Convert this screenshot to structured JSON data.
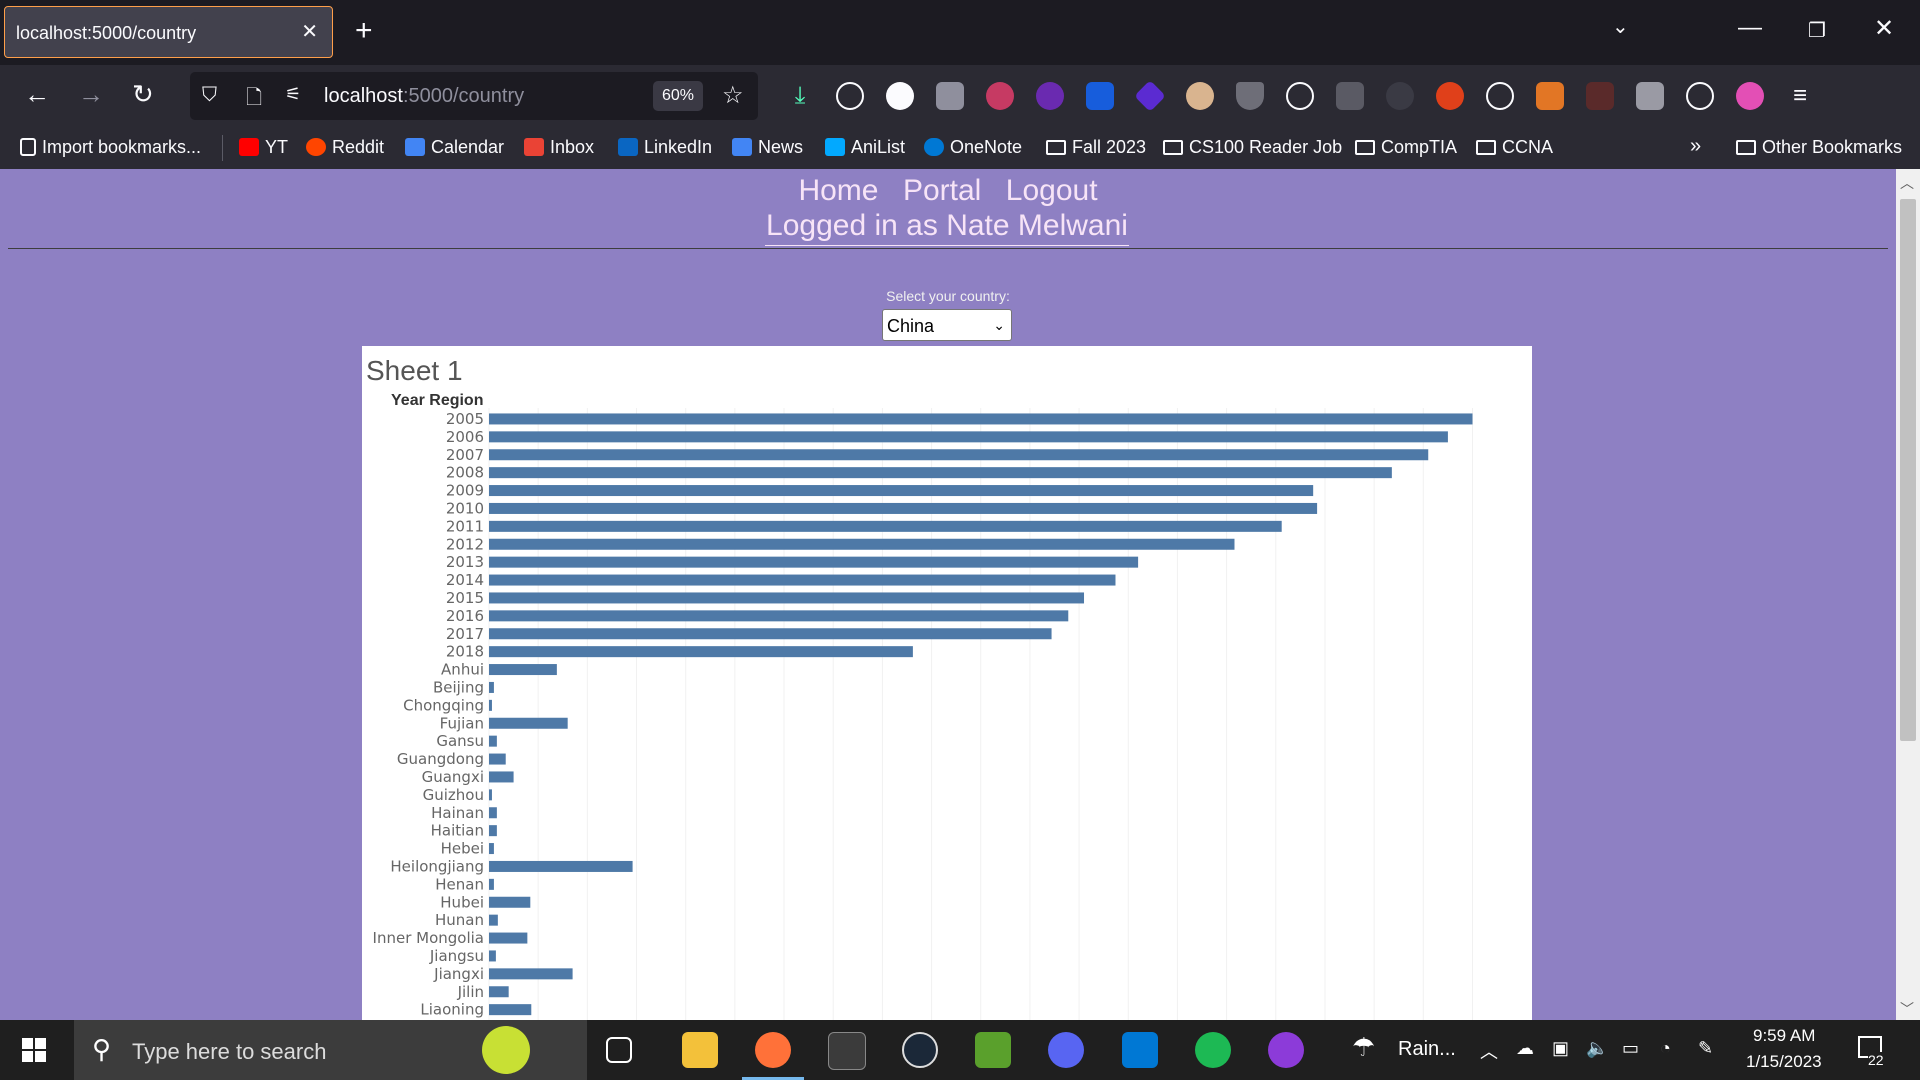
{
  "browser": {
    "tab_title": "localhost:5000/country",
    "url_host": "localhost",
    "url_path": ":5000/country",
    "zoom": "60%"
  },
  "bookmarks": [
    {
      "label": "Import bookmarks...",
      "icon": "import-icon",
      "type": "link"
    },
    {
      "label": "YT",
      "icon": "youtube-icon",
      "color": "#ff0000",
      "type": "link"
    },
    {
      "label": "Reddit",
      "icon": "reddit-icon",
      "color": "#ff4500",
      "type": "link"
    },
    {
      "label": "Calendar",
      "icon": "calendar-icon",
      "color": "#4285f4",
      "type": "link"
    },
    {
      "label": "Inbox",
      "icon": "gmail-icon",
      "color": "#ea4335",
      "type": "link"
    },
    {
      "label": "LinkedIn",
      "icon": "linkedin-icon",
      "color": "#0a66c2",
      "type": "link"
    },
    {
      "label": "News",
      "icon": "google-news-icon",
      "color": "#4285f4",
      "type": "link"
    },
    {
      "label": "AniList",
      "icon": "anilist-icon",
      "color": "#02a9ff",
      "type": "link"
    },
    {
      "label": "OneNote",
      "icon": "onedrive-icon",
      "color": "#0078d4",
      "type": "link"
    },
    {
      "label": "Fall 2023",
      "icon": "folder-icon",
      "type": "folder"
    },
    {
      "label": "CS100 Reader Job",
      "icon": "folder-icon",
      "type": "folder"
    },
    {
      "label": "CompTIA",
      "icon": "folder-icon",
      "type": "folder"
    },
    {
      "label": "CCNA",
      "icon": "folder-icon",
      "type": "folder"
    }
  ],
  "other_bookmarks": "Other Bookmarks",
  "site": {
    "nav": [
      "Home",
      "Portal",
      "Logout"
    ],
    "logged_in": "Logged in as Nate Melwani",
    "country_label": "Select your country:",
    "country_selected": "China"
  },
  "chart_data": {
    "type": "bar",
    "orientation": "horizontal",
    "title": "Sheet 1",
    "column_header": "Year Region",
    "categories": [
      "2005",
      "2006",
      "2007",
      "2008",
      "2009",
      "2010",
      "2011",
      "2012",
      "2013",
      "2014",
      "2015",
      "2016",
      "2017",
      "2018",
      "Anhui",
      "Beijing",
      "Chongqing",
      "Fujian",
      "Gansu",
      "Guangdong",
      "Guangxi",
      "Guizhou",
      "Hainan",
      "Haitian",
      "Hebei",
      "Heilongjiang",
      "Henan",
      "Hubei",
      "Hunan",
      "Inner Mongolia",
      "Jiangsu",
      "Jiangxi",
      "Jilin",
      "Liaoning"
    ],
    "values": [
      1000,
      975,
      955,
      918,
      838,
      842,
      806,
      758,
      660,
      637,
      605,
      589,
      572,
      431,
      69,
      5,
      3,
      80,
      8,
      17,
      25,
      3,
      8,
      8,
      5,
      146,
      5,
      42,
      9,
      39,
      7,
      85,
      20,
      43
    ],
    "xlim": [
      0,
      1030
    ],
    "grid": true,
    "bar_color": "#4e79a7"
  },
  "taskbar": {
    "search_placeholder": "Type here to search",
    "weather": "Rain...",
    "time": "9:59 AM",
    "date": "1/15/2023",
    "notifications": "22"
  }
}
